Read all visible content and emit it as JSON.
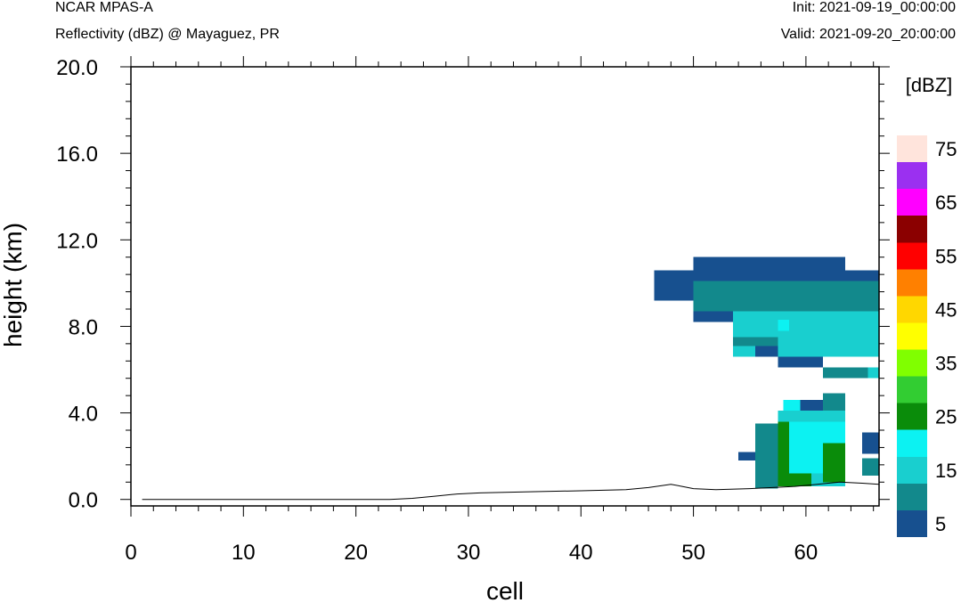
{
  "header": {
    "model": "NCAR MPAS-A",
    "subtitle": "Reflectivity (dBZ) @ Mayaguez, PR",
    "init": "Init: 2021-09-19_00:00:00",
    "valid": "Valid: 2021-09-20_20:00:00"
  },
  "chart_data": {
    "type": "heatmap",
    "title": "Reflectivity (dBZ) @ Mayaguez, PR",
    "xlabel": "cell",
    "ylabel": "height (km)",
    "xlim": [
      0,
      66.5
    ],
    "ylim": [
      -0.3,
      20.0
    ],
    "xticks": [
      0,
      10,
      20,
      30,
      40,
      50,
      60
    ],
    "xtick_labels": [
      "0",
      "10",
      "20",
      "30",
      "40",
      "50",
      "60"
    ],
    "yticks": [
      0,
      4,
      8,
      12,
      16,
      20
    ],
    "ytick_labels": [
      "0.0",
      "4.0",
      "8.0",
      "12.0",
      "16.0",
      "20.0"
    ],
    "grid": false,
    "colorbar": {
      "title": "[dBZ]",
      "labels": [
        "5",
        "15",
        "25",
        "35",
        "45",
        "55",
        "65",
        "75"
      ],
      "levels": [
        0,
        5,
        10,
        15,
        20,
        25,
        30,
        35,
        40,
        45,
        50,
        55,
        60,
        65,
        70,
        75,
        80
      ],
      "colors": [
        "#17508f",
        "#12898c",
        "#19cfcf",
        "#0cf2f2",
        "#0a8c0a",
        "#32cd32",
        "#80ff00",
        "#ffff00",
        "#ffd700",
        "#ff8000",
        "#ff0000",
        "#8b0000",
        "#ff00ff",
        "#9b30f0",
        "#ffe4dc"
      ]
    },
    "terrain": {
      "x": [
        1,
        23,
        25,
        27,
        29,
        31,
        35,
        40,
        44,
        46,
        48,
        49,
        50,
        52,
        55,
        57,
        59,
        61,
        63,
        65,
        66.5
      ],
      "height_km": [
        0.0,
        0.0,
        0.05,
        0.15,
        0.25,
        0.3,
        0.35,
        0.4,
        0.45,
        0.55,
        0.7,
        0.6,
        0.5,
        0.45,
        0.5,
        0.55,
        0.6,
        0.7,
        0.8,
        0.75,
        0.7
      ]
    },
    "cells": [
      {
        "x0": 50,
        "x1": 63.5,
        "z0": 10.6,
        "z1": 11.2,
        "dbz": 2.5
      },
      {
        "x0": 46.5,
        "x1": 50,
        "z0": 9.2,
        "z1": 10.6,
        "dbz": 2.5
      },
      {
        "x0": 50,
        "x1": 66.5,
        "z0": 10.1,
        "z1": 10.6,
        "dbz": 2.5
      },
      {
        "x0": 50,
        "x1": 66.5,
        "z0": 8.7,
        "z1": 10.1,
        "dbz": 7.5
      },
      {
        "x0": 50,
        "x1": 53.5,
        "z0": 8.2,
        "z1": 8.7,
        "dbz": 2.5
      },
      {
        "x0": 53.5,
        "x1": 66.5,
        "z0": 6.6,
        "z1": 8.7,
        "dbz": 12.5
      },
      {
        "x0": 53.5,
        "x1": 57.5,
        "z0": 7.1,
        "z1": 7.5,
        "dbz": 7.5
      },
      {
        "x0": 55.5,
        "x1": 57.5,
        "z0": 6.6,
        "z1": 7.1,
        "dbz": 2.5
      },
      {
        "x0": 57.5,
        "x1": 61.5,
        "z0": 6.1,
        "z1": 6.6,
        "dbz": 2.5
      },
      {
        "x0": 61.5,
        "x1": 65.5,
        "z0": 5.6,
        "z1": 6.1,
        "dbz": 7.5
      },
      {
        "x0": 65.5,
        "x1": 66.5,
        "z0": 5.6,
        "z1": 6.1,
        "dbz": 12.5
      },
      {
        "x0": 57.5,
        "x1": 58.5,
        "z0": 7.8,
        "z1": 8.3,
        "dbz": 17.5
      },
      {
        "x0": 58,
        "x1": 59.5,
        "z0": 4.1,
        "z1": 4.6,
        "dbz": 17.5
      },
      {
        "x0": 59.5,
        "x1": 61.5,
        "z0": 4.1,
        "z1": 4.6,
        "dbz": 2.5
      },
      {
        "x0": 61.5,
        "x1": 63.5,
        "z0": 4.1,
        "z1": 4.9,
        "dbz": 7.5
      },
      {
        "x0": 55.5,
        "x1": 57.5,
        "z0": 0.5,
        "z1": 3.5,
        "dbz": 7.5
      },
      {
        "x0": 57.5,
        "x1": 63.5,
        "z0": 0.6,
        "z1": 4.1,
        "dbz": 12.5
      },
      {
        "x0": 58.5,
        "x1": 63.5,
        "z0": 1.2,
        "z1": 3.6,
        "dbz": 17.5
      },
      {
        "x0": 57.5,
        "x1": 58.5,
        "z0": 0.6,
        "z1": 3.6,
        "dbz": 22.5
      },
      {
        "x0": 58.5,
        "x1": 60.5,
        "z0": 0.6,
        "z1": 1.2,
        "dbz": 22.5
      },
      {
        "x0": 61.5,
        "x1": 63.5,
        "z0": 0.8,
        "z1": 2.6,
        "dbz": 22.5
      },
      {
        "x0": 54,
        "x1": 55.5,
        "z0": 1.8,
        "z1": 2.2,
        "dbz": 2.5
      },
      {
        "x0": 65,
        "x1": 66.5,
        "z0": 1.1,
        "z1": 1.9,
        "dbz": 7.5
      },
      {
        "x0": 65,
        "x1": 66.5,
        "z0": 2.1,
        "z1": 3.1,
        "dbz": 2.5
      }
    ]
  }
}
